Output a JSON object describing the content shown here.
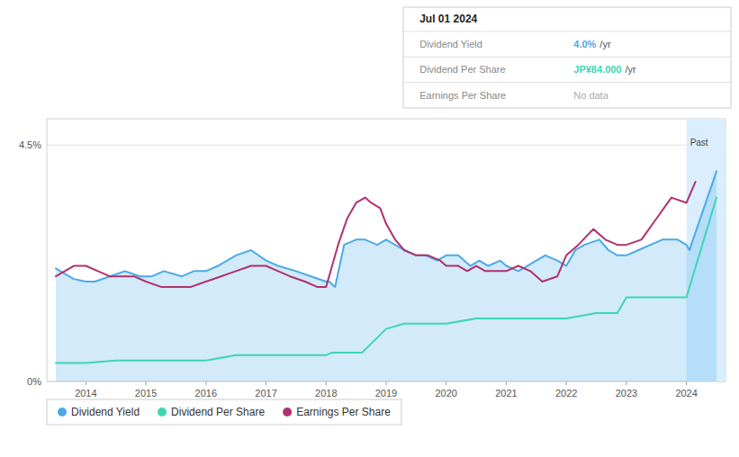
{
  "chart_data": {
    "type": "line",
    "info_box": {
      "title": "Jul 01 2024",
      "rows": [
        {
          "label": "Dividend Yield",
          "value": "4.0%",
          "unit": "/yr"
        },
        {
          "label": "Dividend Per Share",
          "value": "JP¥84.000",
          "unit": "/yr"
        },
        {
          "label": "Earnings Per Share",
          "value": "No data"
        }
      ]
    },
    "annotations": [
      {
        "text": "Past",
        "x": 2024.0
      }
    ],
    "series": [
      {
        "name": "Dividend Yield",
        "type": "area",
        "color": "#4baae8",
        "x": [
          2013.5,
          2013.65,
          2013.8,
          2014.0,
          2014.15,
          2014.4,
          2014.65,
          2014.9,
          2015.1,
          2015.3,
          2015.6,
          2015.8,
          2016.0,
          2016.2,
          2016.5,
          2016.75,
          2017.0,
          2017.2,
          2017.5,
          2017.75,
          2018.0,
          2018.05,
          2018.15,
          2018.3,
          2018.5,
          2018.65,
          2018.85,
          2019.0,
          2019.15,
          2019.3,
          2019.5,
          2019.65,
          2019.85,
          2020.0,
          2020.2,
          2020.4,
          2020.55,
          2020.7,
          2020.9,
          2021.0,
          2021.2,
          2021.35,
          2021.5,
          2021.65,
          2021.85,
          2022.0,
          2022.15,
          2022.3,
          2022.55,
          2022.7,
          2022.85,
          2023.0,
          2023.2,
          2023.4,
          2023.6,
          2023.85,
          2024.0,
          2024.05,
          2024.5
        ],
        "values": [
          0.0215,
          0.0205,
          0.0195,
          0.019,
          0.019,
          0.02,
          0.021,
          0.02,
          0.02,
          0.021,
          0.02,
          0.021,
          0.021,
          0.022,
          0.024,
          0.025,
          0.023,
          0.022,
          0.021,
          0.02,
          0.019,
          0.019,
          0.018,
          0.026,
          0.027,
          0.027,
          0.026,
          0.027,
          0.026,
          0.025,
          0.024,
          0.024,
          0.023,
          0.024,
          0.024,
          0.022,
          0.023,
          0.022,
          0.023,
          0.022,
          0.021,
          0.022,
          0.023,
          0.024,
          0.023,
          0.022,
          0.025,
          0.026,
          0.027,
          0.025,
          0.024,
          0.024,
          0.025,
          0.026,
          0.027,
          0.027,
          0.026,
          0.025,
          0.04
        ]
      },
      {
        "name": "Dividend Per Share",
        "type": "line",
        "color": "#3dd6b5",
        "x": [
          2013.5,
          2013.7,
          2014.0,
          2014.5,
          2015.0,
          2015.5,
          2016.0,
          2016.5,
          2017.0,
          2017.5,
          2017.85,
          2018.0,
          2018.1,
          2018.2,
          2018.6,
          2019.0,
          2019.3,
          2019.6,
          2020.0,
          2020.5,
          2021.0,
          2021.5,
          2022.0,
          2022.5,
          2022.85,
          2023.0,
          2023.5,
          2023.85,
          2024.0,
          2024.5
        ],
        "values": [
          0.0035,
          0.0035,
          0.0035,
          0.004,
          0.004,
          0.004,
          0.004,
          0.005,
          0.005,
          0.005,
          0.005,
          0.005,
          0.0055,
          0.0055,
          0.0055,
          0.01,
          0.011,
          0.011,
          0.011,
          0.012,
          0.012,
          0.012,
          0.012,
          0.013,
          0.013,
          0.016,
          0.016,
          0.016,
          0.016,
          0.035
        ]
      },
      {
        "name": "Earnings Per Share",
        "type": "line",
        "color": "#b03070",
        "x": [
          2013.5,
          2013.65,
          2013.8,
          2014.0,
          2014.2,
          2014.4,
          2014.6,
          2014.8,
          2015.0,
          2015.25,
          2015.5,
          2015.75,
          2016.0,
          2016.25,
          2016.5,
          2016.75,
          2017.0,
          2017.2,
          2017.4,
          2017.65,
          2017.85,
          2018.0,
          2018.1,
          2018.2,
          2018.35,
          2018.5,
          2018.65,
          2018.75,
          2018.9,
          2019.0,
          2019.15,
          2019.3,
          2019.5,
          2019.7,
          2019.9,
          2020.0,
          2020.2,
          2020.35,
          2020.5,
          2020.65,
          2020.85,
          2021.0,
          2021.2,
          2021.4,
          2021.6,
          2021.85,
          2022.0,
          2022.2,
          2022.45,
          2022.65,
          2022.85,
          2023.0,
          2023.25,
          2023.5,
          2023.75,
          2024.0,
          2024.15
        ],
        "values": [
          0.02,
          0.021,
          0.022,
          0.022,
          0.021,
          0.02,
          0.02,
          0.02,
          0.019,
          0.018,
          0.018,
          0.018,
          0.019,
          0.02,
          0.021,
          0.022,
          0.022,
          0.021,
          0.02,
          0.019,
          0.018,
          0.018,
          0.022,
          0.026,
          0.031,
          0.034,
          0.035,
          0.034,
          0.033,
          0.03,
          0.027,
          0.025,
          0.024,
          0.024,
          0.023,
          0.022,
          0.022,
          0.021,
          0.022,
          0.021,
          0.021,
          0.021,
          0.022,
          0.021,
          0.019,
          0.02,
          0.024,
          0.026,
          0.029,
          0.027,
          0.026,
          0.026,
          0.027,
          0.031,
          0.035,
          0.034,
          0.038
        ]
      }
    ],
    "xlim": [
      2013.35,
      2024.65
    ],
    "ylim": [
      0.0,
      0.05
    ],
    "xticks": [
      2014,
      2015,
      2016,
      2017,
      2018,
      2019,
      2020,
      2021,
      2022,
      2023,
      2024
    ],
    "yticks": [
      {
        "value": 0.0,
        "label": "0%"
      },
      {
        "value": 0.045,
        "label": "4.5%"
      }
    ],
    "grid": true,
    "legend": "bottom left"
  }
}
